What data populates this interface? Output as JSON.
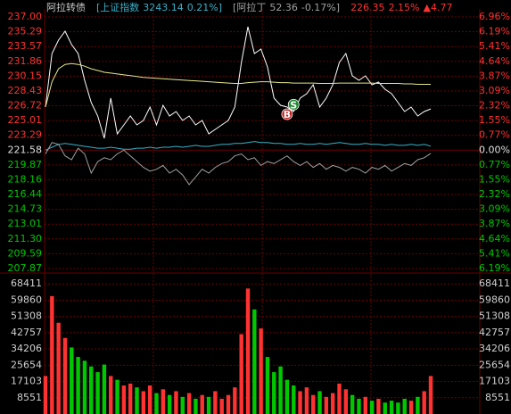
{
  "chart_data": [
    {
      "type": "line",
      "header": [
        {
          "text": "阿拉转债",
          "color": "#c8c8c8"
        },
        {
          "text": "[上证指数",
          "color": "#3ab0c8"
        },
        {
          "text": "3243.14",
          "color": "#3ab0c8"
        },
        {
          "text": "0.21%]",
          "color": "#3ab0c8"
        },
        {
          "text": "[阿拉丁",
          "color": "#a0a0a0"
        },
        {
          "text": "52.36",
          "color": "#a0a0a0"
        },
        {
          "text": "-0.17%]",
          "color": "#a0a0a0"
        },
        {
          "text": "226.35",
          "color": "#ff3232"
        },
        {
          "text": "2.15%",
          "color": "#ff3232"
        },
        {
          "text": "▲4.77",
          "color": "#ff3232"
        }
      ],
      "up_color": "#ff3232",
      "down_color": "#00c800",
      "flat_color": "#e0e0e0",
      "grid": true,
      "grid_color": "#6a0000",
      "ylim": [
        207.87,
        237.0
      ],
      "yticks": [
        {
          "value": 237.0,
          "label": "237.00"
        },
        235.29,
        233.57,
        231.86,
        230.15,
        228.43,
        226.72,
        225.01,
        223.29,
        221.58,
        219.87,
        218.16,
        216.44,
        214.73,
        213.01,
        {
          "value": 211.3,
          "label": "211.30"
        },
        209.59,
        207.87
      ],
      "y2lim": [
        -6.19,
        6.96
      ],
      "y2ticks": [
        {
          "value": 6.96,
          "label": "6.96%"
        },
        {
          "value": 6.19,
          "label": "6.19%"
        },
        {
          "value": 5.41,
          "label": "5.41%"
        },
        {
          "value": 4.64,
          "label": "4.64%"
        },
        {
          "value": 3.87,
          "label": "3.87%"
        },
        {
          "value": 3.09,
          "label": "3.09%"
        },
        {
          "value": 2.32,
          "label": "2.32%"
        },
        {
          "value": 1.55,
          "label": "1.55%"
        },
        {
          "value": 0.77,
          "label": "0.77%"
        },
        {
          "value": 0,
          "label": "0.00%"
        },
        {
          "value": -0.77,
          "label": "0.77%"
        },
        {
          "value": -1.55,
          "label": "1.55%"
        },
        {
          "value": -2.32,
          "label": "2.32%"
        },
        {
          "value": -3.09,
          "label": "3.09%"
        },
        {
          "value": -3.87,
          "label": "3.87%"
        },
        {
          "value": -4.64,
          "label": "4.64%"
        },
        {
          "value": -5.41,
          "label": "5.41%"
        },
        {
          "value": -6.19,
          "label": "6.19%"
        }
      ],
      "series": [
        {
          "color": "#ffffff",
          "values": [
            226.57,
            232.76,
            234.31,
            235.35,
            233.8,
            232.76,
            229.67,
            227.08,
            225.53,
            222.95,
            227.6,
            223.47,
            224.5,
            225.53,
            224.5,
            225.02,
            226.57,
            224.5,
            226.77,
            225.53,
            226.05,
            225.02,
            225.53,
            224.5,
            225.02,
            223.47,
            223.98,
            224.5,
            225.02,
            226.57,
            231.73,
            235.86,
            232.76,
            233.28,
            231.22,
            227.6,
            226.77,
            226.57,
            226.05,
            227.6,
            228.12,
            229.15,
            226.57,
            227.6,
            229.15,
            231.73,
            232.76,
            230.18,
            229.67,
            230.18,
            229.15,
            229.46,
            228.63,
            228.12,
            227.08,
            226.05,
            226.57,
            225.53,
            226.05,
            226.35
          ]
        },
        {
          "color": "#e6e68c",
          "values": [
            226.57,
            229.5,
            231.0,
            231.5,
            231.6,
            231.5,
            231.3,
            231.0,
            230.8,
            230.6,
            230.5,
            230.4,
            230.3,
            230.2,
            230.1,
            230.0,
            229.95,
            229.9,
            229.85,
            229.8,
            229.75,
            229.7,
            229.65,
            229.6,
            229.55,
            229.5,
            229.45,
            229.4,
            229.35,
            229.3,
            229.3,
            229.4,
            229.45,
            229.5,
            229.5,
            229.45,
            229.4,
            229.4,
            229.35,
            229.35,
            229.35,
            229.35,
            229.3,
            229.3,
            229.3,
            229.35,
            229.35,
            229.35,
            229.35,
            229.35,
            229.35,
            229.3,
            229.3,
            229.3,
            229.3,
            229.25,
            229.25,
            229.2,
            229.2,
            229.2
          ]
        },
        {
          "color": "#3ab0c8",
          "axis": "y2",
          "values": [
            0,
            0.15,
            0.3,
            0.35,
            0.3,
            0.25,
            0.2,
            0.15,
            0.1,
            0.1,
            0.15,
            0.1,
            0.05,
            0.05,
            0.1,
            0.1,
            0.15,
            0.1,
            0.15,
            0.15,
            0.2,
            0.15,
            0.2,
            0.25,
            0.2,
            0.2,
            0.25,
            0.3,
            0.3,
            0.35,
            0.35,
            0.4,
            0.45,
            0.4,
            0.4,
            0.35,
            0.35,
            0.3,
            0.3,
            0.35,
            0.3,
            0.3,
            0.35,
            0.3,
            0.35,
            0.4,
            0.35,
            0.3,
            0.3,
            0.35,
            0.3,
            0.3,
            0.25,
            0.3,
            0.25,
            0.25,
            0.3,
            0.25,
            0.3,
            0.21
          ]
        },
        {
          "color": "#a0a0a0",
          "axis": "y2",
          "values": [
            -0.2,
            0.4,
            0.3,
            -0.3,
            -0.5,
            0.1,
            -0.2,
            -1.2,
            -0.6,
            -0.4,
            -0.5,
            -0.2,
            0.0,
            -0.3,
            -0.6,
            -0.9,
            -1.1,
            -1.0,
            -0.8,
            -1.2,
            -1.0,
            -1.3,
            -1.8,
            -1.4,
            -1.0,
            -1.2,
            -0.9,
            -0.7,
            -0.6,
            -0.3,
            -0.2,
            -0.5,
            -0.4,
            -0.8,
            -0.6,
            -0.7,
            -0.5,
            -0.3,
            -0.6,
            -0.8,
            -0.6,
            -0.9,
            -0.7,
            -1.0,
            -0.8,
            -0.9,
            -1.1,
            -0.9,
            -1.0,
            -1.2,
            -0.9,
            -1.0,
            -0.8,
            -1.1,
            -0.9,
            -0.7,
            -0.8,
            -0.5,
            -0.4,
            -0.17
          ]
        }
      ],
      "markers": [
        {
          "label": "B",
          "index": 37,
          "value": 225.74,
          "color": "#c02020"
        },
        {
          "label": "S",
          "index": 38,
          "value": 226.85,
          "color": "#208a30"
        }
      ]
    },
    {
      "type": "bar",
      "ylim": [
        0,
        76962
      ],
      "yticks": [
        68411,
        59860,
        51308,
        42757,
        34206,
        25654,
        17103,
        8551
      ],
      "values": [
        20000,
        62000,
        48000,
        40000,
        35000,
        30000,
        28000,
        25000,
        22000,
        26000,
        20000,
        18000,
        15000,
        16000,
        14000,
        12000,
        15000,
        11000,
        13000,
        10000,
        12000,
        9000,
        11000,
        8000,
        10000,
        9000,
        12000,
        8000,
        10000,
        14000,
        42000,
        66000,
        55000,
        45000,
        30000,
        22000,
        25000,
        18000,
        15000,
        12000,
        14000,
        10000,
        12000,
        9000,
        11000,
        16000,
        13000,
        10000,
        8000,
        9000,
        7000,
        8000,
        6000,
        7000,
        6000,
        8000,
        7000,
        9000,
        12000,
        20000
      ]
    }
  ]
}
